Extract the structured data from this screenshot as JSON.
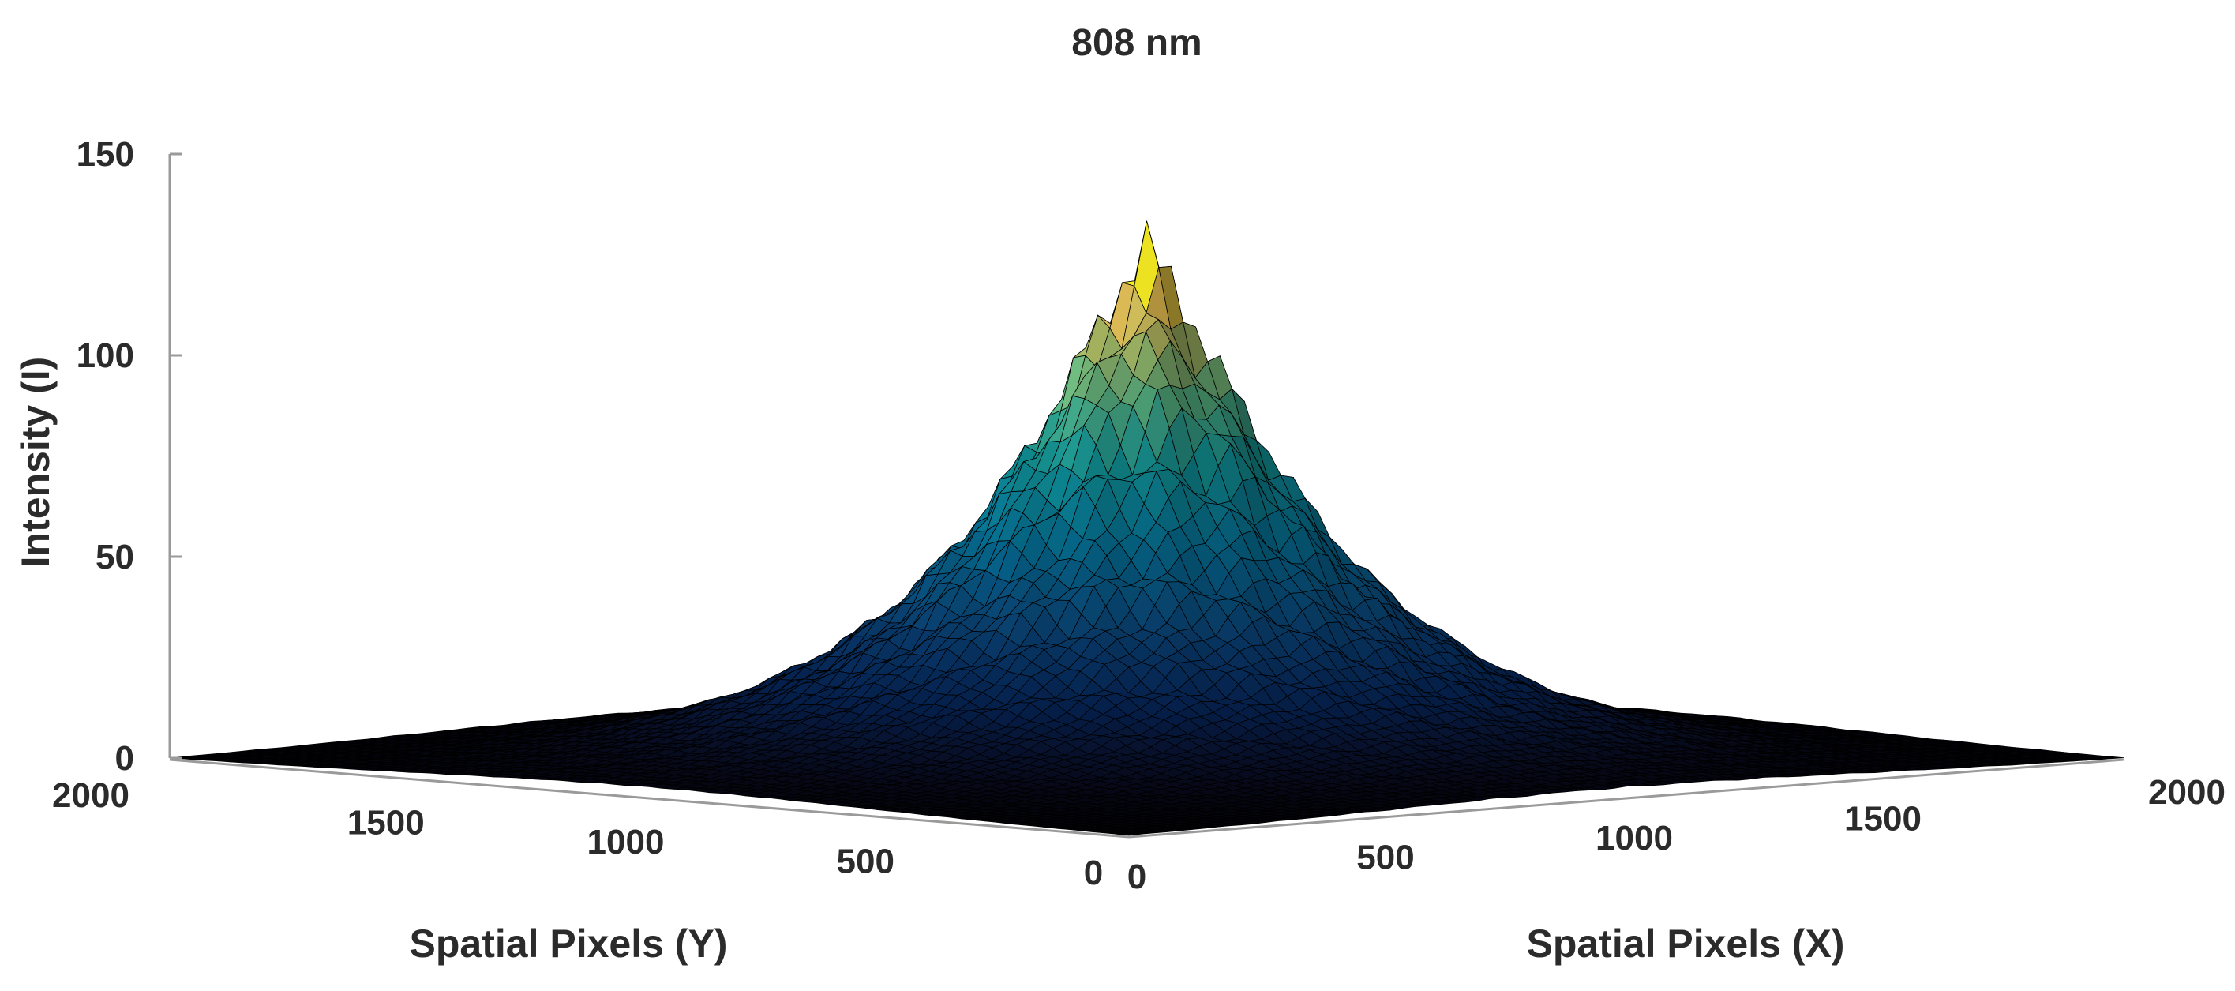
{
  "chart_data": {
    "type": "surface",
    "title": "808 nm",
    "xlabel": "Spatial Pixels (X)",
    "ylabel": "Spatial Pixels (Y)",
    "zlabel": "Intensity (I)",
    "xlim": [
      0,
      2000
    ],
    "ylim": [
      0,
      2000
    ],
    "zlim": [
      0,
      150
    ],
    "x_ticks": [
      "0",
      "500",
      "1000",
      "1500",
      "2000"
    ],
    "y_ticks": [
      "0",
      "500",
      "1000",
      "1500",
      "2000"
    ],
    "z_ticks": [
      "0",
      "50",
      "100",
      "150"
    ],
    "surface": {
      "shape": "centered peak",
      "peak_value": 125,
      "peak_x": 1000,
      "peak_y": 1000,
      "baseline": 0,
      "colormap": "parula"
    },
    "grid": false
  }
}
